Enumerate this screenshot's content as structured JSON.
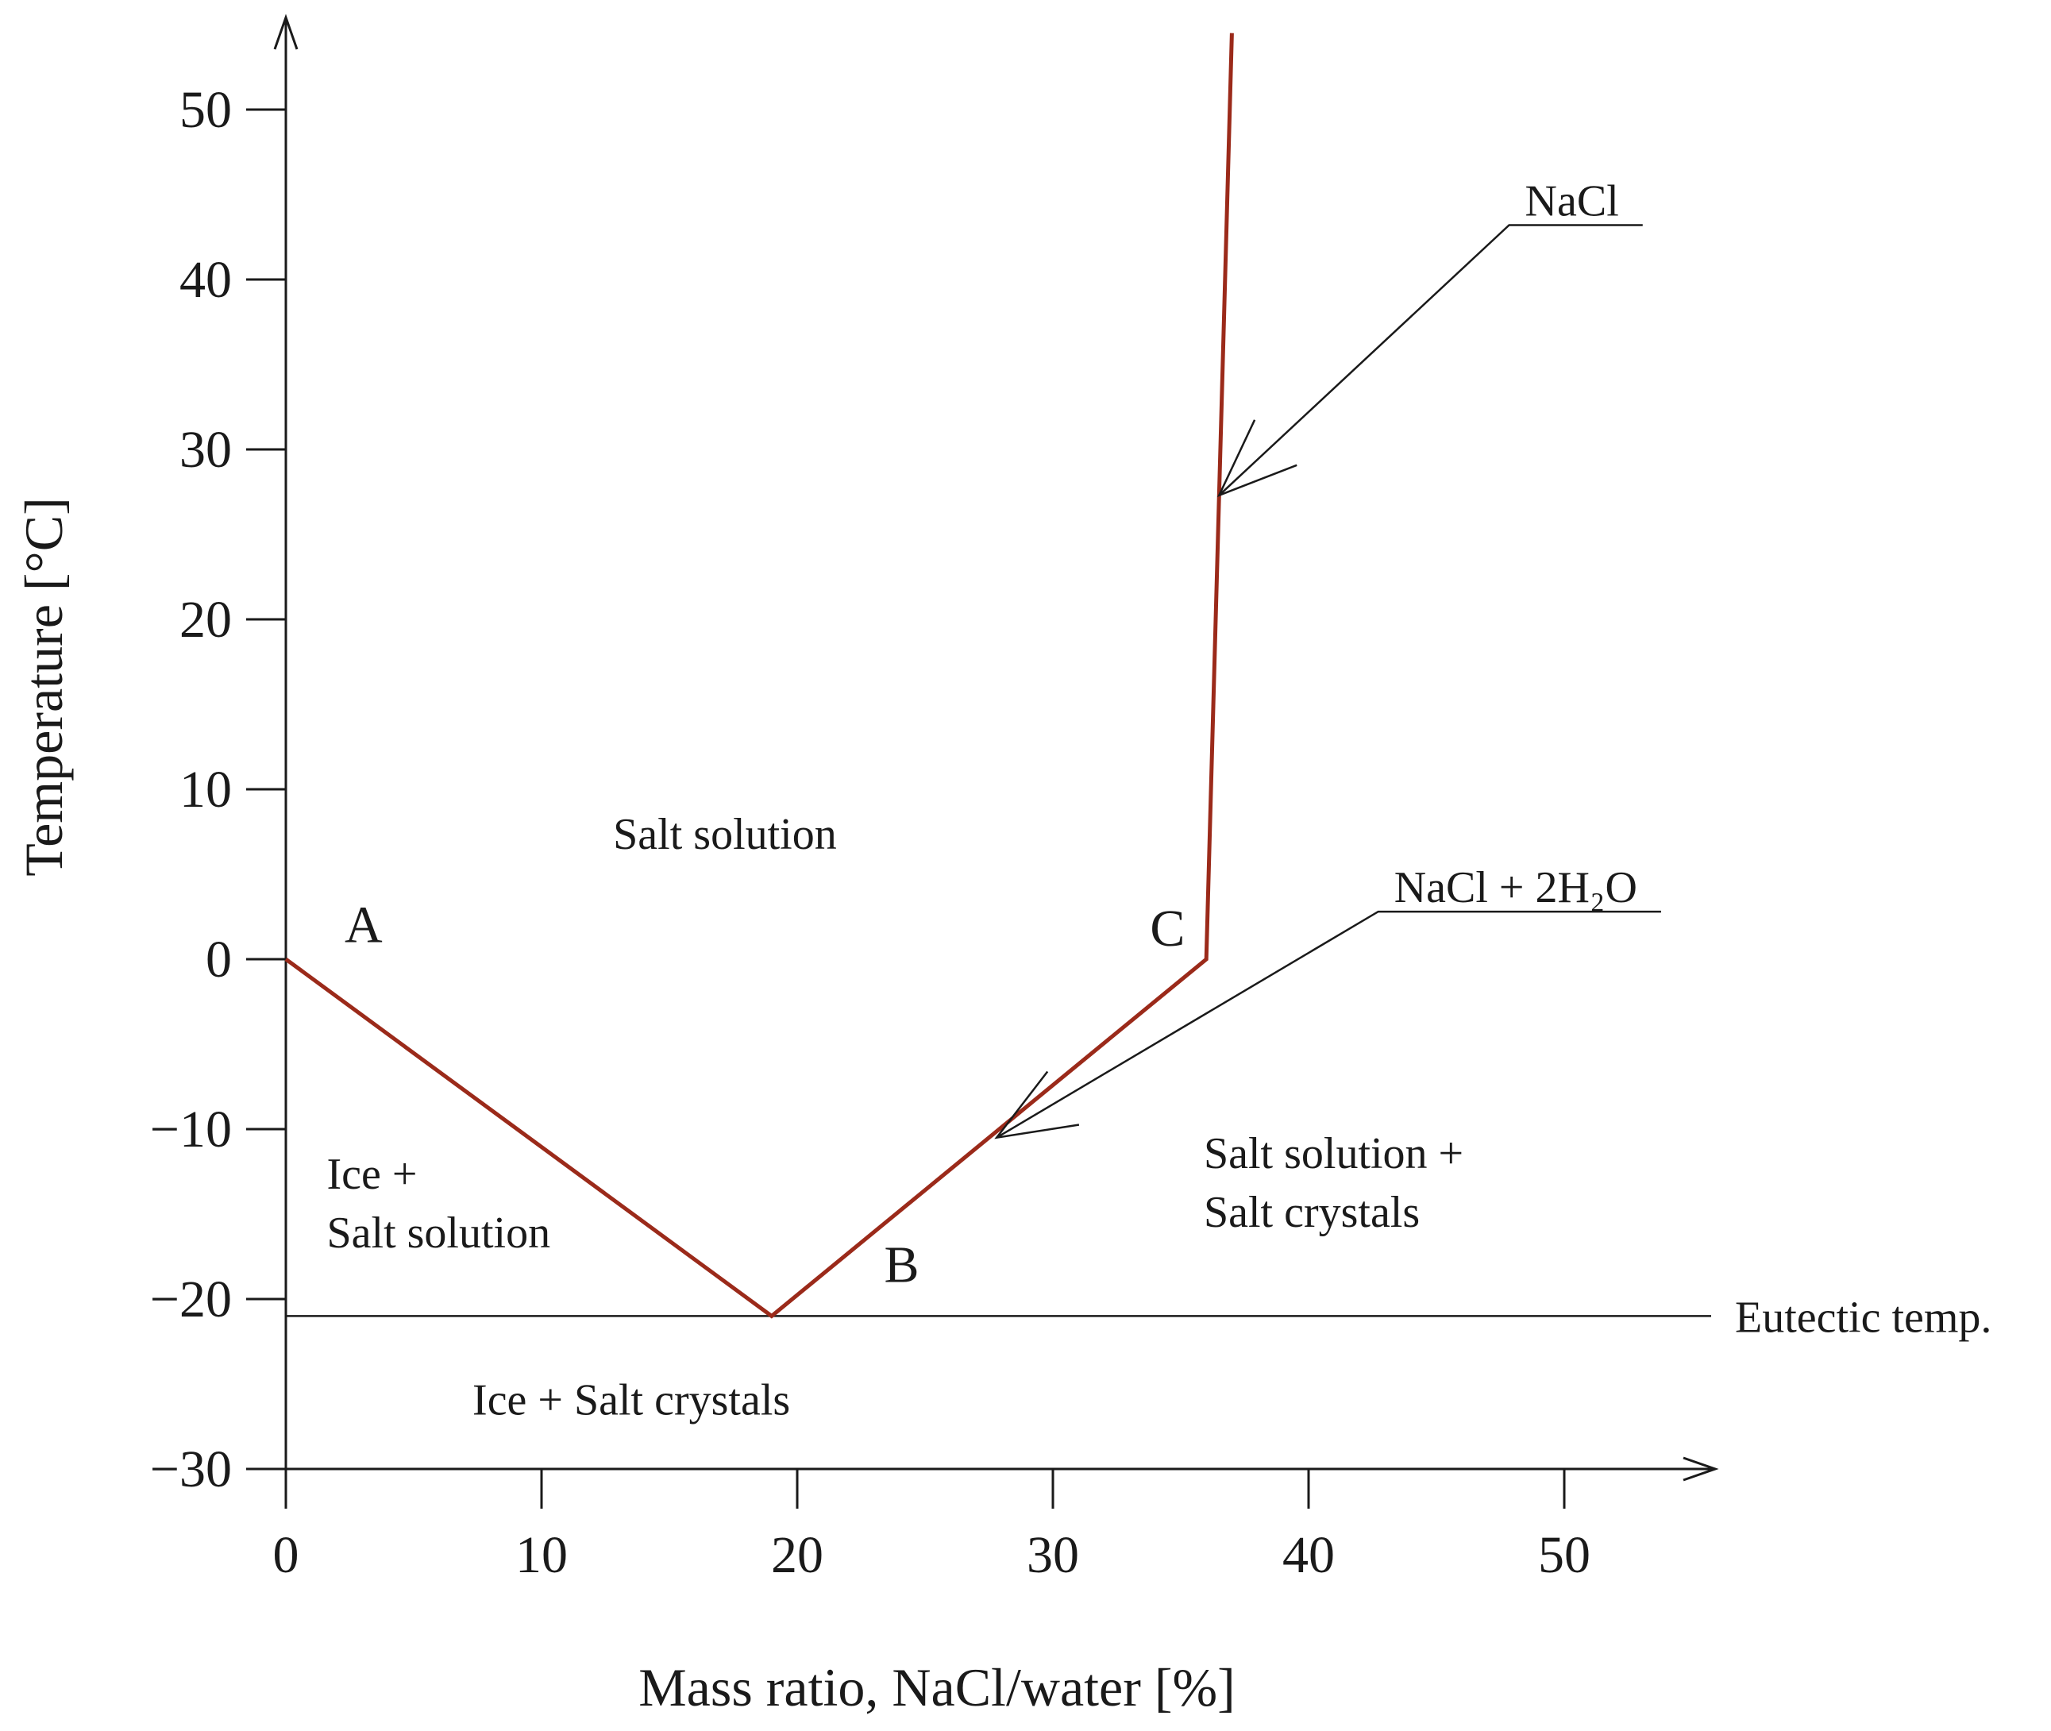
{
  "chart_data": {
    "type": "line",
    "xlabel": "Mass ratio, NaCl/water [%]",
    "ylabel": "Temperature [°C]",
    "xlim": [
      0,
      56
    ],
    "ylim": [
      -30,
      55
    ],
    "x_ticks": [
      0,
      10,
      20,
      30,
      40,
      50
    ],
    "y_ticks": [
      -30,
      -20,
      -10,
      0,
      10,
      20,
      30,
      40,
      50
    ],
    "y_tick_labels": [
      "−30",
      "−20",
      "−10",
      "0",
      "10",
      "20",
      "30",
      "40",
      "50"
    ],
    "grid": false,
    "line_color": "#9b2a1a",
    "series": [
      {
        "x": [
          0,
          19,
          36,
          37
        ],
        "y": [
          0,
          -21,
          0,
          54.5
        ]
      }
    ],
    "eutectic_line": {
      "y": -21,
      "label": "Eutectic temp."
    },
    "point_labels": [
      {
        "text": "A",
        "x": 2.3,
        "y": 1.0
      },
      {
        "text": "B",
        "x": 23.4,
        "y": -19.0
      },
      {
        "text": "C",
        "x": 33.8,
        "y": 0.8
      }
    ],
    "region_labels": [
      {
        "lines": [
          "Salt solution"
        ],
        "x": 12.8,
        "y": 6.5
      },
      {
        "lines": [
          "Ice +",
          "Salt solution"
        ],
        "x": 1.6,
        "y": -13.5
      },
      {
        "lines": [
          "Salt solution +",
          "Salt crystals"
        ],
        "x": 35.9,
        "y": -12.3
      },
      {
        "lines": [
          "Ice + Salt crystals"
        ],
        "x": 7.3,
        "y": -26.8
      }
    ],
    "annotations": [
      {
        "text": "NaCl",
        "text_x": 50.3,
        "text_y": 43.2,
        "arrow_to_x": 36.5,
        "arrow_to_y": 27.3
      },
      {
        "text": "NaCl + 2H₂O",
        "text_x": 48.1,
        "text_y": 2.8,
        "arrow_to_x": 27.8,
        "arrow_to_y": -10.5
      }
    ]
  }
}
